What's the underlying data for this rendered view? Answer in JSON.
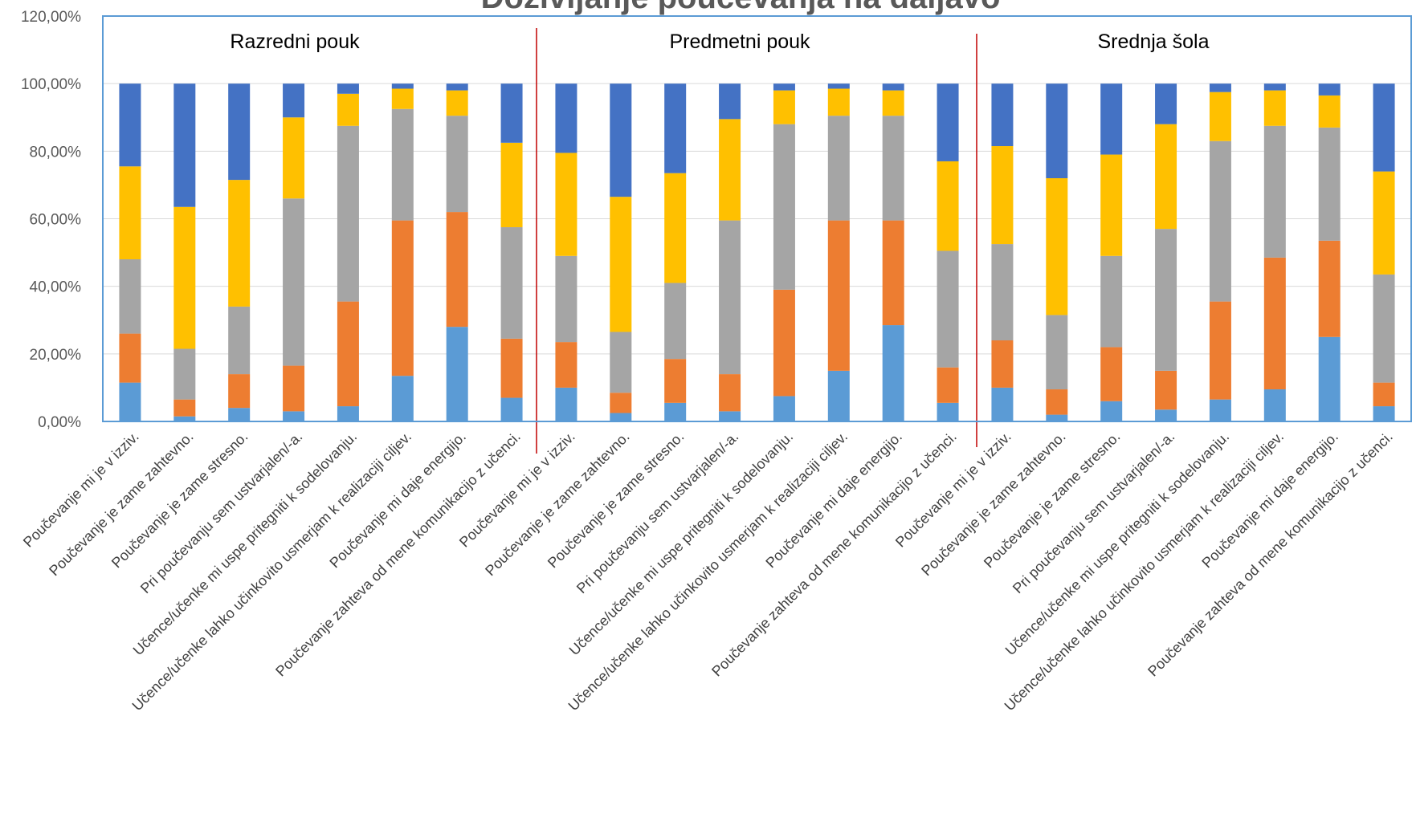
{
  "chart_data": {
    "type": "bar",
    "stacked": true,
    "title": "Doživljanje poučevanja na daljavo",
    "ylim": [
      0,
      120
    ],
    "yticks": [
      "0,00%",
      "20,00%",
      "40,00%",
      "60,00%",
      "80,00%",
      "100,00%",
      "120,00%"
    ],
    "grid": true,
    "groups": [
      "Razredni pouk",
      "Predmetni pouk",
      "Srednja šola"
    ],
    "categories": [
      "Poučevanje mi je v izziv.",
      "Poučevanje je zame zahtevno.",
      "Poučevanje je zame stresno.",
      "Pri poučevanju sem ustvarjalen/-a.",
      "Učence/učenke mi uspe pritegniti k sodelovanju.",
      "Učence/učenke lahko učinkovito usmerjam k realizaciji ciljev.",
      "Poučevanje mi daje energijo.",
      "Poučevanje zahteva od mene komunikacijo z učenci.",
      "Poučevanje mi je v izziv.",
      "Poučevanje je zame zahtevno.",
      "Poučevanje je zame stresno.",
      "Pri poučevanju sem ustvarjalen/-a.",
      "Učence/učenke mi uspe pritegniti k sodelovanju.",
      "Učence/učenke lahko učinkovito usmerjam k realizaciji ciljev.",
      "Poučevanje mi daje energijo.",
      "Poučevanje zahteva od mene komunikacijo z učenci.",
      "Poučevanje mi je v izziv.",
      "Poučevanje je zame zahtevno.",
      "Poučevanje je zame stresno.",
      "Pri poučevanju sem ustvarjalen/-a.",
      "Učence/učenke mi uspe pritegniti k sodelovanju.",
      "Učence/učenke lahko učinkovito usmerjam k realizaciji ciljev.",
      "Poučevanje mi daje energijo.",
      "Poučevanje zahteva od mene komunikacijo z učenci."
    ],
    "series": [
      {
        "color": "#5B9BD5",
        "values": [
          11.5,
          1.5,
          4,
          3,
          4.5,
          13.5,
          28,
          7,
          10,
          2.5,
          5.5,
          3,
          7.5,
          15,
          28.5,
          5.5,
          10,
          2,
          6,
          3.5,
          6.5,
          9.5,
          25,
          4.5
        ]
      },
      {
        "color": "#ED7D31",
        "values": [
          14.5,
          5,
          10,
          13.5,
          31,
          46,
          34,
          17.5,
          13.5,
          6,
          13,
          11,
          31.5,
          44.5,
          31,
          10.5,
          14,
          7.5,
          16,
          11.5,
          29,
          39,
          28.5,
          7
        ]
      },
      {
        "color": "#A5A5A5",
        "values": [
          22,
          15,
          20,
          49.5,
          52,
          33,
          28.5,
          33,
          25.5,
          18,
          22.5,
          45.5,
          49,
          31,
          31,
          34.5,
          28.5,
          22,
          27,
          42,
          47.5,
          39,
          33.5,
          32
        ]
      },
      {
        "color": "#FFC000",
        "values": [
          27.5,
          42,
          37.5,
          24,
          9.5,
          6,
          7.5,
          25,
          30.5,
          40,
          32.5,
          30,
          10,
          8,
          7.5,
          26.5,
          29,
          40.5,
          30,
          31,
          14.5,
          10.5,
          9.5,
          30.5
        ]
      },
      {
        "color": "#4472C4",
        "values": [
          24.5,
          36.5,
          28.5,
          10,
          3,
          1.5,
          2,
          17.5,
          20.5,
          33.5,
          26.5,
          10.5,
          2,
          1.5,
          2,
          23,
          18.5,
          28,
          21,
          12,
          2.5,
          2,
          3.5,
          26
        ]
      }
    ]
  }
}
